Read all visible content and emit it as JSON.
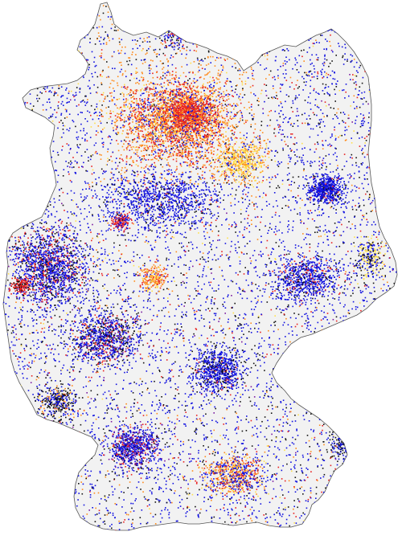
{
  "map": {
    "region": "Germany",
    "colors": {
      "land_fill": "#f2f2f2",
      "border": "#555555",
      "blue": "#1010e0",
      "black": "#111111",
      "red": "#e82020",
      "orange": "#ff8a1a",
      "yellow": "#ffe04a",
      "purple": "#7a1aa0"
    },
    "point_categories": [
      "blue",
      "black",
      "red",
      "orange",
      "yellow",
      "purple"
    ]
  }
}
